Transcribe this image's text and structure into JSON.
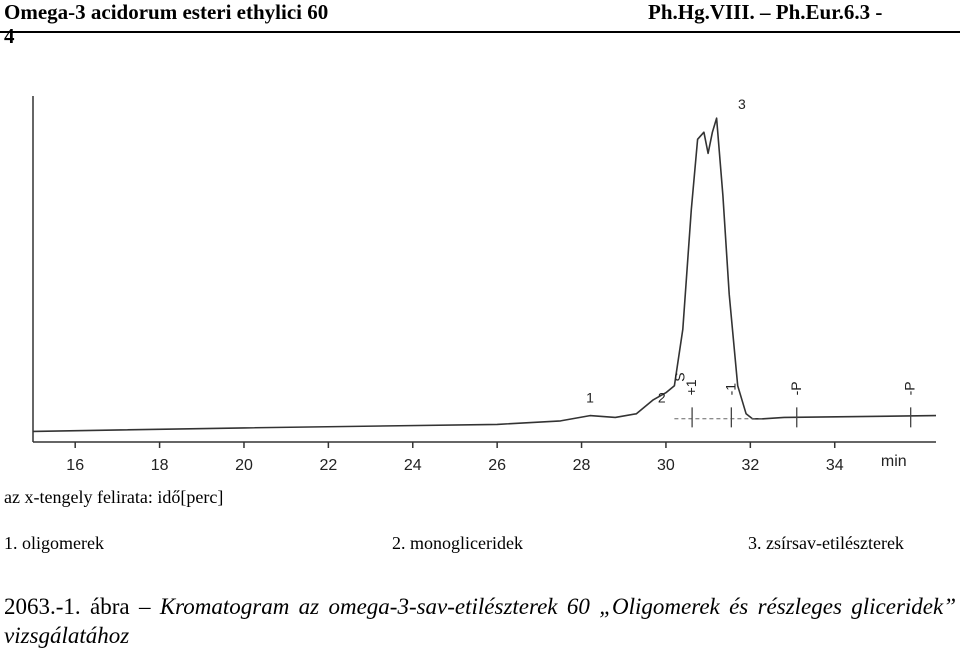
{
  "header": {
    "title": "Omega-3 acidorum esteri ethylici 60",
    "title_cont": "4",
    "reference": "Ph.Hg.VIII. – Ph.Eur.6.3 -"
  },
  "axis_note": "az x-tengely felirata: idő[perc]",
  "legend": [
    {
      "label": "1. oligomerek"
    },
    {
      "label": "2. monogliceridek"
    },
    {
      "label": "3. zsírsav-etilészterek"
    }
  ],
  "caption": {
    "number": "2063.-1. ábra",
    "dash": "–",
    "text": "Kromatogram az omega-3-sav-etilészterek 60 „Oligomerek és részleges gliceridek” vizsgálatához"
  },
  "chart_data": {
    "type": "line",
    "title": "",
    "xlabel": "min",
    "ylabel": "",
    "xlim": [
      15,
      36.4
    ],
    "ylim": [
      0,
      1
    ],
    "grid": false,
    "x_ticks": [
      16,
      18,
      20,
      22,
      24,
      26,
      28,
      30,
      32,
      34
    ],
    "series": [
      {
        "x": [
          15.0,
          20.0,
          26.0,
          27.5,
          28.2,
          28.8,
          29.3,
          29.7,
          30.0,
          30.2,
          30.4,
          30.6,
          30.75,
          30.9,
          31.0,
          31.1,
          31.2,
          31.35,
          31.5,
          31.7,
          31.9,
          32.05,
          32.3,
          32.8,
          36.4
        ],
        "y": [
          0.03,
          0.04,
          0.05,
          0.06,
          0.075,
          0.07,
          0.08,
          0.12,
          0.14,
          0.16,
          0.32,
          0.66,
          0.86,
          0.88,
          0.82,
          0.88,
          0.92,
          0.7,
          0.42,
          0.16,
          0.08,
          0.066,
          0.066,
          0.07,
          0.075
        ]
      }
    ],
    "peak_labels": [
      {
        "x": 28.2,
        "label": "1"
      },
      {
        "x": 29.9,
        "label": "2"
      },
      {
        "x": 30.35,
        "label": "S"
      },
      {
        "x": 31.8,
        "label": "3"
      }
    ],
    "event_marks": [
      {
        "x": 30.62,
        "label": "+1"
      },
      {
        "x": 31.55,
        "label": "-1"
      },
      {
        "x": 33.1,
        "label": "-P"
      },
      {
        "x": 35.8,
        "label": "-P"
      }
    ]
  }
}
